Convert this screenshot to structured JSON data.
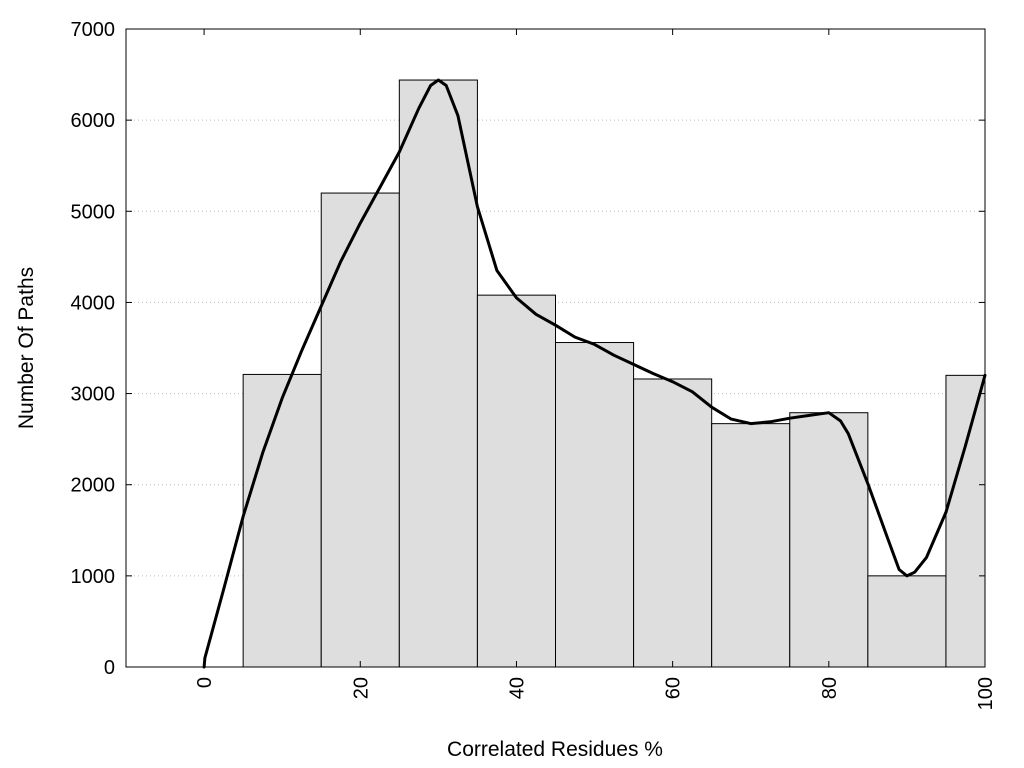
{
  "chart_data": {
    "type": "bar",
    "xlabel": "Correlated Residues %",
    "ylabel": "Number Of Paths",
    "xlim": [
      -10,
      100
    ],
    "ylim": [
      0,
      7000
    ],
    "x_ticks": [
      0,
      20,
      40,
      60,
      80,
      100
    ],
    "y_ticks": [
      0,
      1000,
      2000,
      3000,
      4000,
      5000,
      6000,
      7000
    ],
    "grid": {
      "y": true,
      "x": false
    },
    "bar_color": "#dedede",
    "bar_edge_color": "#000000",
    "curve_color": "#000000",
    "bars": [
      {
        "x_start": 5,
        "x_end": 15,
        "value": 3210
      },
      {
        "x_start": 15,
        "x_end": 25,
        "value": 5200
      },
      {
        "x_start": 25,
        "x_end": 35,
        "value": 6440
      },
      {
        "x_start": 35,
        "x_end": 45,
        "value": 4080
      },
      {
        "x_start": 45,
        "x_end": 55,
        "value": 3560
      },
      {
        "x_start": 55,
        "x_end": 65,
        "value": 3160
      },
      {
        "x_start": 65,
        "x_end": 75,
        "value": 2670
      },
      {
        "x_start": 75,
        "x_end": 85,
        "value": 2790
      },
      {
        "x_start": 85,
        "x_end": 95,
        "value": 1000
      },
      {
        "x_start": 95,
        "x_end": 100,
        "value": 3200
      }
    ],
    "curve": {
      "x": [
        0,
        0.1,
        2.5,
        5,
        7.5,
        10,
        12.5,
        15,
        17.5,
        20,
        22.5,
        25,
        27.5,
        29,
        30,
        31,
        32.5,
        35,
        37.5,
        40,
        42.5,
        45,
        47.5,
        50,
        52.5,
        55,
        57.5,
        60,
        62.5,
        65,
        67.5,
        70,
        72.5,
        75,
        77.5,
        80,
        81.5,
        82.5,
        85,
        87.5,
        89,
        90,
        91,
        92.5,
        95,
        97.5,
        100
      ],
      "y": [
        0,
        100,
        850,
        1650,
        2350,
        2950,
        3470,
        3960,
        4450,
        4870,
        5260,
        5650,
        6130,
        6380,
        6440,
        6380,
        6050,
        5050,
        4350,
        4050,
        3870,
        3750,
        3620,
        3540,
        3420,
        3320,
        3220,
        3130,
        3020,
        2850,
        2720,
        2670,
        2690,
        2730,
        2760,
        2790,
        2700,
        2560,
        2010,
        1420,
        1070,
        1000,
        1040,
        1200,
        1700,
        2430,
        3200
      ]
    }
  }
}
